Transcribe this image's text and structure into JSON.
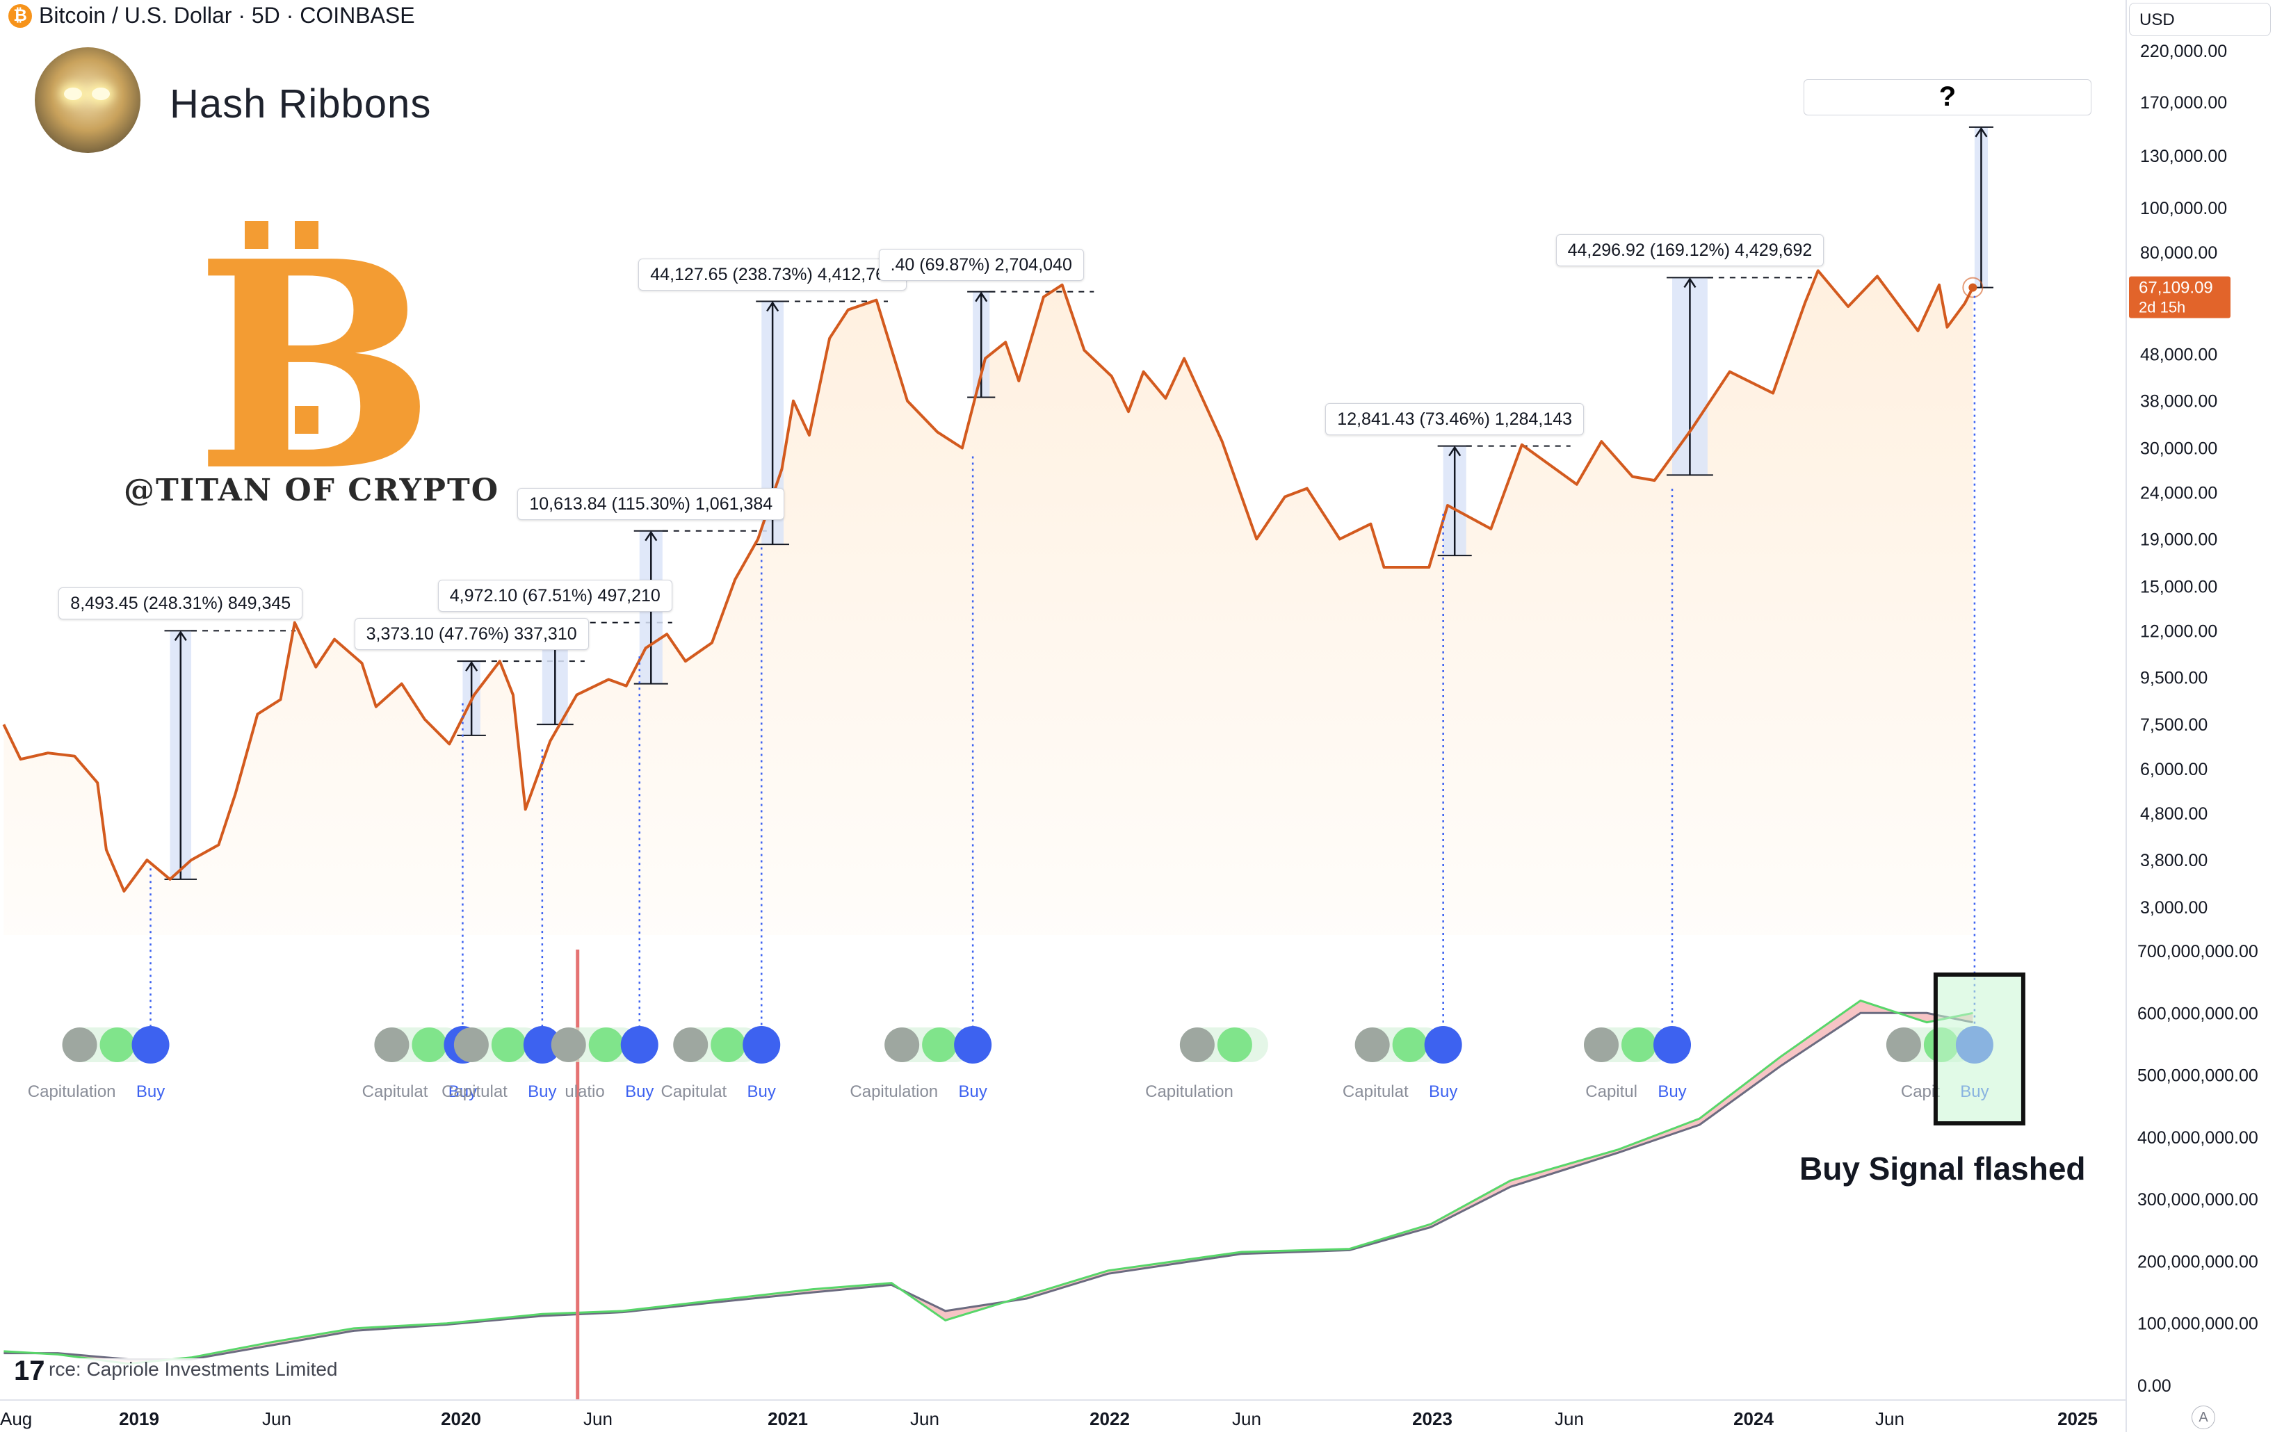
{
  "header": {
    "title": "Bitcoin / U.S. Dollar · 5D · COINBASE",
    "symbol_icon": "bitcoin-icon"
  },
  "indicator_title": "Hash Ribbons",
  "brand_text": "@TITAN OF CRYPTO",
  "currency_button": "USD",
  "source_text": "rce: Capriole Investments Limited",
  "tradingview_logo": "17",
  "buy_signal_text": "Buy Signal flashed",
  "question_mark": "?",
  "auto_scale_button": "A",
  "colors": {
    "price_line": "#d35a1e",
    "area_fill": "#fff0df",
    "measure_band": "#dbe4f8",
    "buy_dot": "#3d62f0",
    "capitulation_dot": "#9ea7a0",
    "capitulation_green": "#6ee07a",
    "hashrate_fast": "#58d66a",
    "hashrate_slow": "#6b6b80",
    "ribbon_red": "#e8575a",
    "price_badge": "#e2642a",
    "vertical_marker": "#e57373"
  },
  "chart_data": {
    "type": "line",
    "title": "Bitcoin / U.S. Dollar · 5D · COINBASE",
    "x_ticks": [
      "Aug",
      "2019",
      "Jun",
      "2020",
      "Jun",
      "2021",
      "Jun",
      "2022",
      "Jun",
      "2023",
      "Jun",
      "2024",
      "Jun",
      "2025"
    ],
    "price_axis": {
      "scale": "log",
      "ticks": [
        "220,000.00",
        "170,000.00",
        "130,000.00",
        "100,000.00",
        "80,000.00",
        "48,000.00",
        "38,000.00",
        "30,000.00",
        "24,000.00",
        "19,000.00",
        "15,000.00",
        "12,000.00",
        "9,500.00",
        "7,500.00",
        "6,000.00",
        "4,800.00",
        "3,800.00",
        "3,000.00"
      ],
      "tick_values": [
        220000,
        170000,
        130000,
        100000,
        80000,
        48000,
        38000,
        30000,
        24000,
        19000,
        15000,
        12000,
        9500,
        7500,
        6000,
        4800,
        3800,
        3000
      ]
    },
    "current_price": {
      "value": "67,109.09",
      "countdown": "2d 15h"
    },
    "hashrate_axis": {
      "ticks": [
        "700,000,000.00",
        "600,000,000.00",
        "500,000,000.00",
        "400,000,000.00",
        "300,000,000.00",
        "200,000,000.00",
        "100,000,000.00",
        "0.00"
      ],
      "tick_values": [
        700000000,
        600000000,
        500000000,
        400000000,
        300000000,
        200000000,
        100000000,
        0
      ]
    },
    "series": [
      {
        "points": [
          [
            "2018-08-01",
            7500
          ],
          [
            "2018-08-20",
            6300
          ],
          [
            "2018-09-20",
            6500
          ],
          [
            "2018-10-20",
            6400
          ],
          [
            "2018-11-15",
            5600
          ],
          [
            "2018-11-25",
            4000
          ],
          [
            "2018-12-15",
            3250
          ],
          [
            "2019-01-10",
            3800
          ],
          [
            "2019-02-05",
            3450
          ],
          [
            "2019-03-01",
            3800
          ],
          [
            "2019-04-01",
            4100
          ],
          [
            "2019-04-20",
            5300
          ],
          [
            "2019-05-15",
            7900
          ],
          [
            "2019-06-10",
            8500
          ],
          [
            "2019-06-26",
            12500
          ],
          [
            "2019-07-20",
            10000
          ],
          [
            "2019-08-10",
            11500
          ],
          [
            "2019-09-10",
            10200
          ],
          [
            "2019-09-26",
            8200
          ],
          [
            "2019-10-25",
            9200
          ],
          [
            "2019-11-20",
            7700
          ],
          [
            "2019-12-18",
            6800
          ],
          [
            "2020-01-15",
            8700
          ],
          [
            "2020-02-13",
            10300
          ],
          [
            "2020-02-28",
            8700
          ],
          [
            "2020-03-13",
            4900
          ],
          [
            "2020-04-10",
            6900
          ],
          [
            "2020-05-10",
            8700
          ],
          [
            "2020-06-15",
            9400
          ],
          [
            "2020-07-05",
            9100
          ],
          [
            "2020-07-27",
            11000
          ],
          [
            "2020-08-20",
            11800
          ],
          [
            "2020-09-10",
            10300
          ],
          [
            "2020-10-10",
            11300
          ],
          [
            "2020-11-05",
            15500
          ],
          [
            "2020-12-01",
            19000
          ],
          [
            "2020-12-28",
            27000
          ],
          [
            "2021-01-10",
            38000
          ],
          [
            "2021-01-28",
            32000
          ],
          [
            "2021-02-20",
            52000
          ],
          [
            "2021-03-13",
            60000
          ],
          [
            "2021-04-14",
            63000
          ],
          [
            "2021-05-19",
            38000
          ],
          [
            "2021-06-22",
            32500
          ],
          [
            "2021-07-20",
            30000
          ],
          [
            "2021-08-15",
            47000
          ],
          [
            "2021-09-07",
            51000
          ],
          [
            "2021-09-22",
            42000
          ],
          [
            "2021-10-20",
            64000
          ],
          [
            "2021-11-10",
            68000
          ],
          [
            "2021-12-05",
            49000
          ],
          [
            "2022-01-05",
            43000
          ],
          [
            "2022-01-24",
            36000
          ],
          [
            "2022-02-10",
            44000
          ],
          [
            "2022-03-07",
            38500
          ],
          [
            "2022-03-28",
            47000
          ],
          [
            "2022-05-10",
            31000
          ],
          [
            "2022-06-18",
            19000
          ],
          [
            "2022-07-20",
            23500
          ],
          [
            "2022-08-14",
            24500
          ],
          [
            "2022-09-20",
            19000
          ],
          [
            "2022-10-25",
            20500
          ],
          [
            "2022-11-09",
            16500
          ],
          [
            "2022-12-30",
            16500
          ],
          [
            "2023-01-20",
            22500
          ],
          [
            "2023-03-10",
            20000
          ],
          [
            "2023-04-14",
            30500
          ],
          [
            "2023-06-15",
            25000
          ],
          [
            "2023-07-13",
            31000
          ],
          [
            "2023-08-17",
            26000
          ],
          [
            "2023-09-11",
            25500
          ],
          [
            "2023-10-23",
            33000
          ],
          [
            "2023-12-05",
            44000
          ],
          [
            "2024-01-23",
            39500
          ],
          [
            "2024-02-28",
            62000
          ],
          [
            "2024-03-14",
            73000
          ],
          [
            "2024-04-17",
            61000
          ],
          [
            "2024-05-20",
            71000
          ],
          [
            "2024-07-05",
            54000
          ],
          [
            "2024-07-29",
            68000
          ],
          [
            "2024-08-07",
            55000
          ],
          [
            "2024-08-27",
            62000
          ],
          [
            "2024-09-05",
            67109.09
          ]
        ]
      }
    ],
    "measurements": [
      {
        "label": "8,493.45 (248.31%) 849,345",
        "from": [
          "2019-02-05",
          3450
        ],
        "to": [
          "2019-03-01",
          12000
        ]
      },
      {
        "label": "3,373.10 (47.76%) 337,310",
        "from": [
          "2020-01-02",
          7100
        ],
        "to": [
          "2020-01-22",
          10300
        ]
      },
      {
        "label": "4,972.10 (67.51%) 497,210",
        "from": [
          "2020-04-01",
          7500
        ],
        "to": [
          "2020-04-30",
          12500
        ]
      },
      {
        "label": "10,613.84 (115.30%) 1,061,384",
        "from": [
          "2020-07-20",
          9200
        ],
        "to": [
          "2020-08-15",
          19800
        ]
      },
      {
        "label": "44,127.65 (238.73%) 4,412,765",
        "from": [
          "2020-12-05",
          18500
        ],
        "to": [
          "2020-12-30",
          62600
        ]
      },
      {
        "label": ".40 (69.87%) 2,704,040",
        "from": [
          "2021-08-01",
          38700
        ],
        "to": [
          "2021-08-20",
          65700
        ]
      },
      {
        "label": "12,841.43 (73.46%) 1,284,143",
        "from": [
          "2023-01-15",
          17500
        ],
        "to": [
          "2023-02-10",
          30300
        ]
      },
      {
        "label": "44,296.92 (169.12%) 4,429,692",
        "from": [
          "2023-10-01",
          26200
        ],
        "to": [
          "2023-11-10",
          70500
        ]
      },
      {
        "label": "?",
        "from": [
          "2024-09-07",
          67109
        ],
        "to": [
          "2024-09-22",
          150000
        ]
      }
    ],
    "signals": [
      {
        "date": "2019-01-14",
        "labels": [
          "Capitulation",
          "Buy"
        ]
      },
      {
        "date": "2020-01-02",
        "labels": [
          "Capitulat",
          "Buy"
        ]
      },
      {
        "date": "2020-04-01",
        "labels": [
          "Capitulat",
          "Buy"
        ]
      },
      {
        "date": "2020-07-20",
        "labels": [
          "ulatio",
          "Buy"
        ]
      },
      {
        "date": "2020-12-05",
        "labels": [
          "Capitulat",
          "Buy"
        ]
      },
      {
        "date": "2021-08-01",
        "labels": [
          "Capitulation",
          "Buy"
        ]
      },
      {
        "date": "2022-07-01",
        "labels": [
          "Capitulation"
        ]
      },
      {
        "date": "2023-01-15",
        "labels": [
          "Capitulat",
          "Buy"
        ]
      },
      {
        "date": "2023-10-01",
        "labels": [
          "Capitul",
          "Buy"
        ]
      },
      {
        "date": "2024-09-07",
        "labels": [
          "Capit",
          "Buy"
        ]
      }
    ],
    "hashrate_fast": [
      [
        "2018-08-01",
        55000000
      ],
      [
        "2018-10-01",
        50000000
      ],
      [
        "2018-12-20",
        35000000
      ],
      [
        "2019-03-01",
        45000000
      ],
      [
        "2019-06-01",
        70000000
      ],
      [
        "2019-09-01",
        92000000
      ],
      [
        "2019-12-15",
        100000000
      ],
      [
        "2020-04-01",
        115000000
      ],
      [
        "2020-07-01",
        120000000
      ],
      [
        "2020-10-01",
        135000000
      ],
      [
        "2021-02-01",
        155000000
      ],
      [
        "2021-05-01",
        165000000
      ],
      [
        "2021-07-01",
        105000000
      ],
      [
        "2021-10-01",
        145000000
      ],
      [
        "2022-01-01",
        185000000
      ],
      [
        "2022-06-01",
        215000000
      ],
      [
        "2022-10-01",
        220000000
      ],
      [
        "2023-01-01",
        260000000
      ],
      [
        "2023-04-01",
        330000000
      ],
      [
        "2023-08-01",
        380000000
      ],
      [
        "2023-11-01",
        430000000
      ],
      [
        "2024-02-01",
        530000000
      ],
      [
        "2024-05-01",
        620000000
      ],
      [
        "2024-07-15",
        585000000
      ],
      [
        "2024-09-05",
        600000000
      ]
    ],
    "hashrate_slow": [
      [
        "2018-08-01",
        52000000
      ],
      [
        "2018-10-01",
        52000000
      ],
      [
        "2018-12-20",
        42000000
      ],
      [
        "2019-03-01",
        42000000
      ],
      [
        "2019-06-01",
        65000000
      ],
      [
        "2019-09-01",
        88000000
      ],
      [
        "2019-12-15",
        98000000
      ],
      [
        "2020-04-01",
        112000000
      ],
      [
        "2020-07-01",
        118000000
      ],
      [
        "2020-10-01",
        132000000
      ],
      [
        "2021-02-01",
        150000000
      ],
      [
        "2021-05-01",
        162000000
      ],
      [
        "2021-07-01",
        120000000
      ],
      [
        "2021-10-01",
        140000000
      ],
      [
        "2022-01-01",
        180000000
      ],
      [
        "2022-06-01",
        212000000
      ],
      [
        "2022-10-01",
        218000000
      ],
      [
        "2023-01-01",
        255000000
      ],
      [
        "2023-04-01",
        320000000
      ],
      [
        "2023-08-01",
        375000000
      ],
      [
        "2023-11-01",
        420000000
      ],
      [
        "2024-02-01",
        515000000
      ],
      [
        "2024-05-01",
        600000000
      ],
      [
        "2024-07-15",
        600000000
      ],
      [
        "2024-09-05",
        585000000
      ]
    ],
    "highlight_date": "2020-05-11",
    "grid": false,
    "legend": "none"
  }
}
